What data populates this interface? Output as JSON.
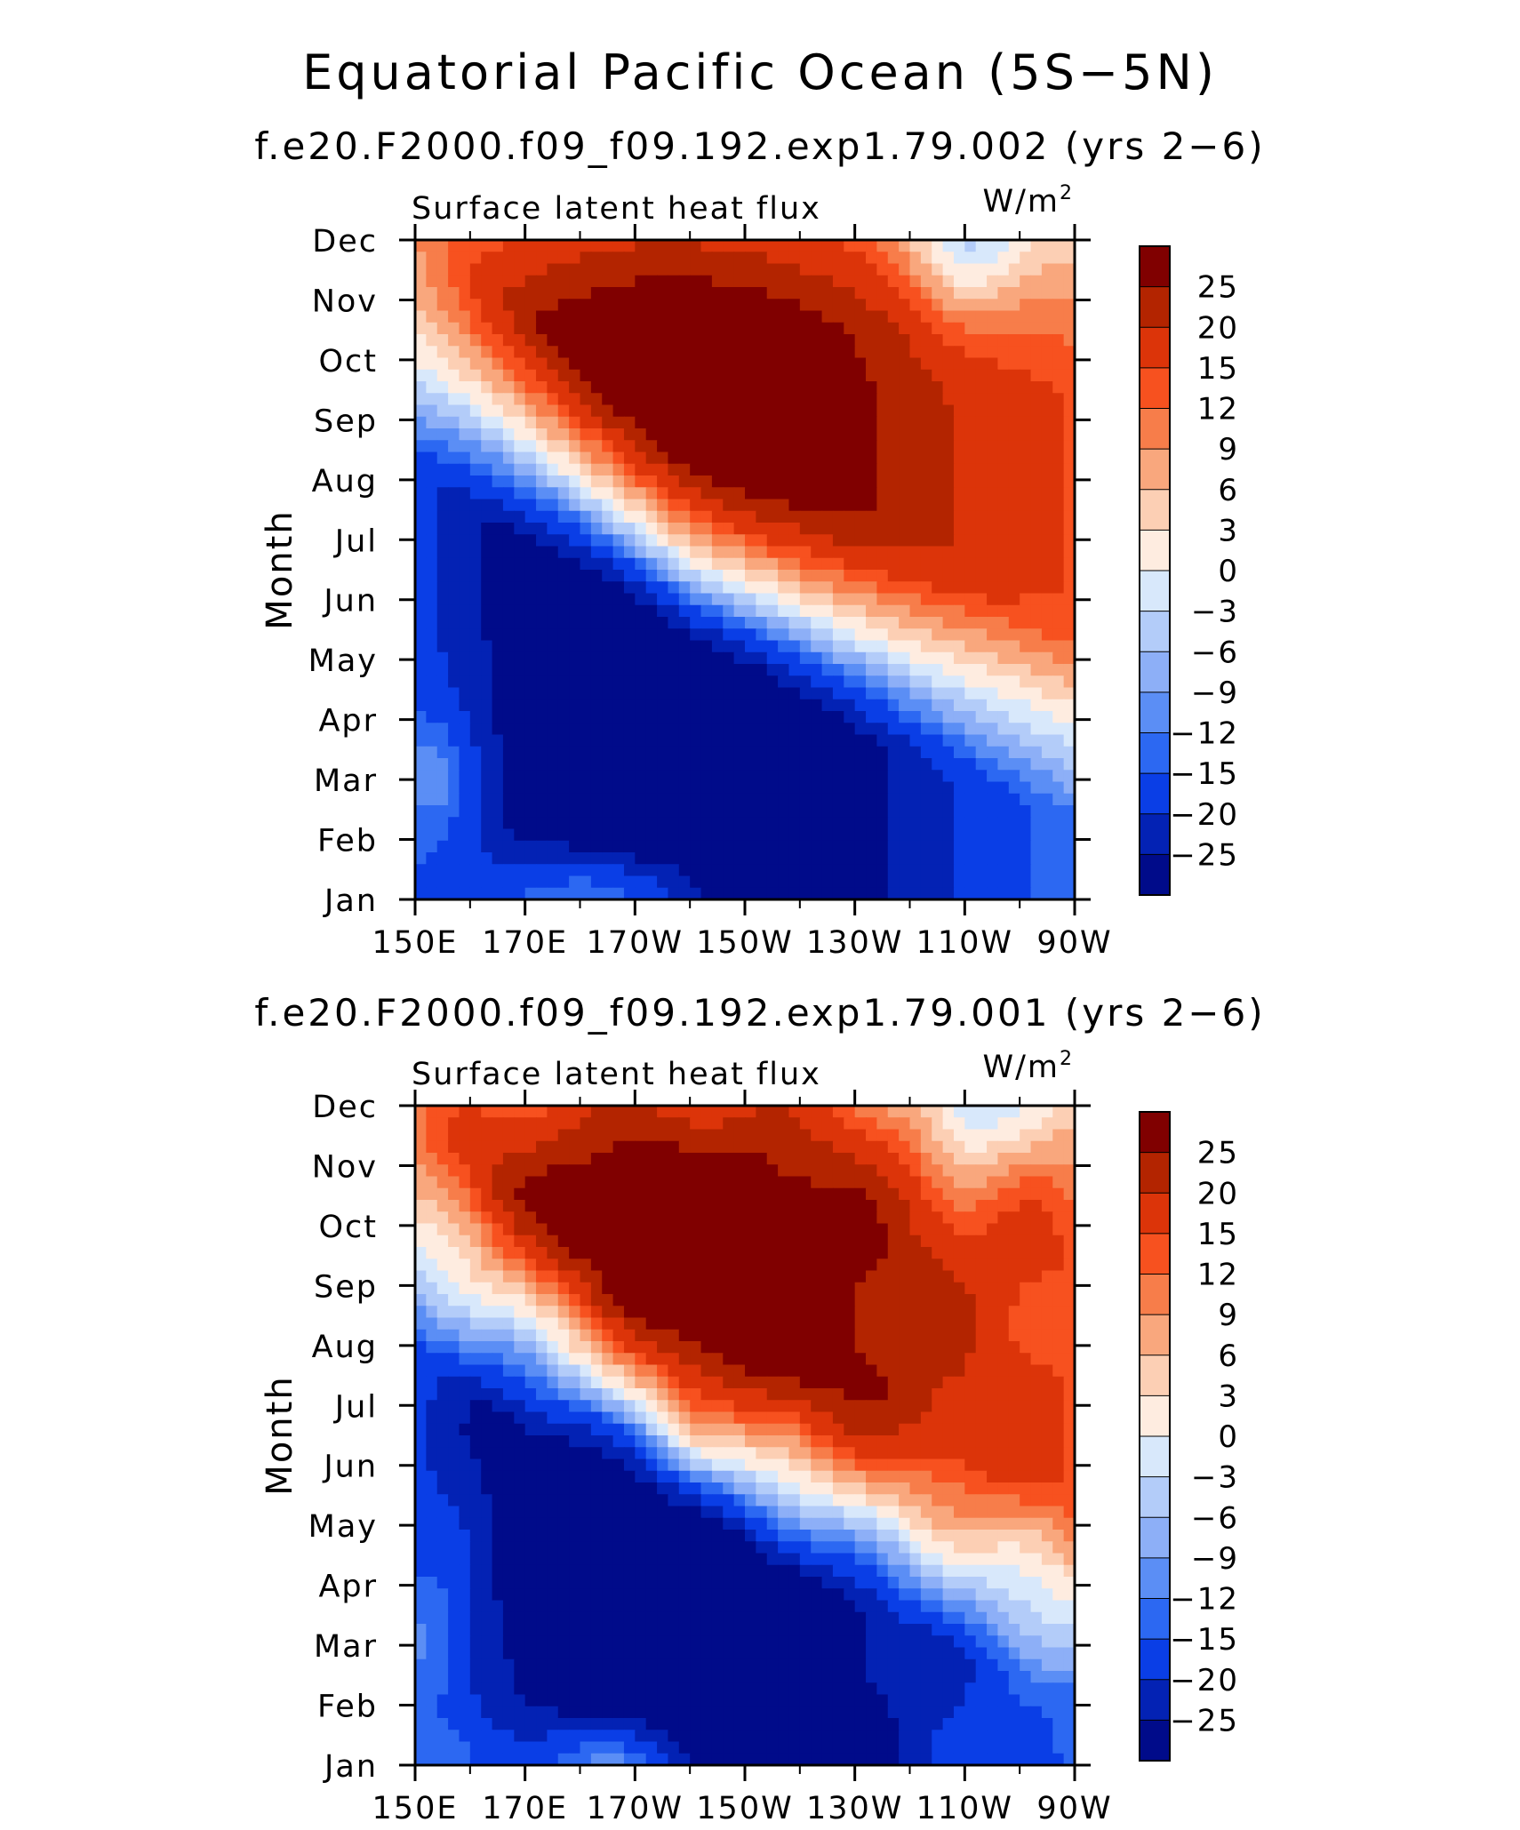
{
  "main_title": "Equatorial Pacific Ocean (5S−5N)",
  "colors": {
    "levels": [
      "#800000",
      "#b32400",
      "#dc3409",
      "#f7511f",
      "#f77d4a",
      "#f9a77d",
      "#fccfb4",
      "#feece0",
      "#d8e8fb",
      "#b3ccf9",
      "#8daff7",
      "#5b8ef5",
      "#2c68f2",
      "#0a3ee6",
      "#0322b4",
      "#000b8a"
    ]
  },
  "chart_data": [
    {
      "type": "heatmap",
      "title": "f.e20.F2000.f09_f09.192.exp1.79.002 (yrs 2−6)",
      "left_label": "Surface latent heat flux",
      "units_label": "W/m",
      "units_sup": "2",
      "ylabel": "Month",
      "yticks": [
        "Jan",
        "Feb",
        "Mar",
        "Apr",
        "May",
        "Jun",
        "Jul",
        "Aug",
        "Sep",
        "Oct",
        "Nov",
        "Dec"
      ],
      "xticks": [
        "150E",
        "170E",
        "170W",
        "150W",
        "130W",
        "110W",
        "90W"
      ],
      "xlim": [
        150,
        270
      ],
      "legend_labels": [
        "25",
        "20",
        "15",
        "12",
        "9",
        "6",
        "3",
        "0",
        "−3",
        "−6",
        "−9",
        "−12",
        "−15",
        "−20",
        "−25"
      ],
      "field": {
        "ridge": [
          [
            150,
            9.0
          ],
          [
            200,
            5.6
          ],
          [
            270,
            2.9
          ]
        ],
        "noise": 0
      }
    },
    {
      "type": "heatmap",
      "title": "f.e20.F2000.f09_f09.192.exp1.79.001 (yrs 2−6)",
      "left_label": "Surface latent heat flux",
      "units_label": "W/m",
      "units_sup": "2",
      "ylabel": "Month",
      "yticks": [
        "Jan",
        "Feb",
        "Mar",
        "Apr",
        "May",
        "Jun",
        "Jul",
        "Aug",
        "Sep",
        "Oct",
        "Nov",
        "Dec"
      ],
      "xticks": [
        "150E",
        "170E",
        "170W",
        "150W",
        "130W",
        "110W",
        "90W"
      ],
      "xlim": [
        150,
        270
      ],
      "legend_labels": [
        "25",
        "20",
        "15",
        "12",
        "9",
        "6",
        "3",
        "0",
        "−3",
        "−6",
        "−9",
        "−12",
        "−15",
        "−20",
        "−25"
      ],
      "field": {
        "ridge": [
          [
            150,
            8.6
          ],
          [
            200,
            5.4
          ],
          [
            270,
            2.7
          ]
        ],
        "noise": 1
      }
    }
  ]
}
